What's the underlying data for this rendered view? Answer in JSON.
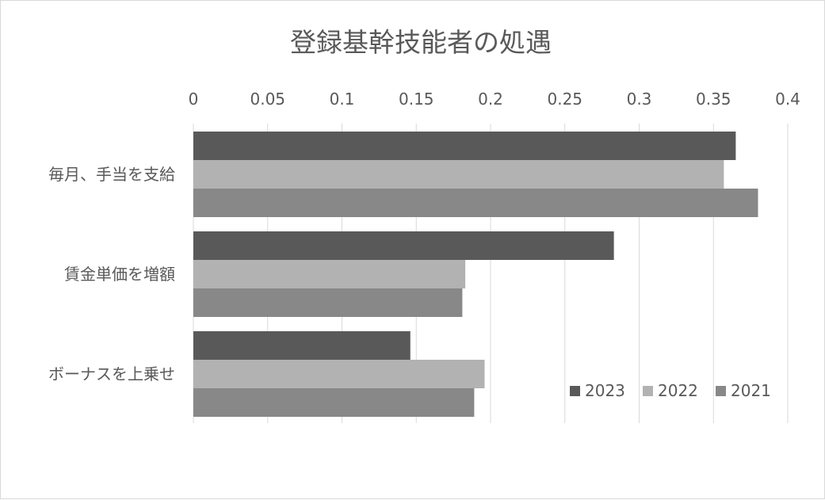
{
  "chart_data": {
    "type": "bar",
    "orientation": "horizontal",
    "title": "登録基幹技能者の処遇",
    "xlabel": "",
    "ylabel": "",
    "xlim": [
      0,
      0.4
    ],
    "x_ticks": [
      "0",
      "0.05",
      "0.1",
      "0.15",
      "0.2",
      "0.25",
      "0.3",
      "0.35",
      "0.4"
    ],
    "x_axis_position": "top",
    "grid": true,
    "legend_position": "bottom-right",
    "categories": [
      "毎月、手当を支給",
      "賃金単価を増額",
      "ボーナスを上乗せ"
    ],
    "series": [
      {
        "name": "2023",
        "color": "#595959",
        "values": [
          0.365,
          0.283,
          0.146
        ]
      },
      {
        "name": "2022",
        "color": "#b2b2b2",
        "values": [
          0.357,
          0.183,
          0.196
        ]
      },
      {
        "name": "2021",
        "color": "#888888",
        "values": [
          0.38,
          0.181,
          0.189
        ]
      }
    ]
  }
}
